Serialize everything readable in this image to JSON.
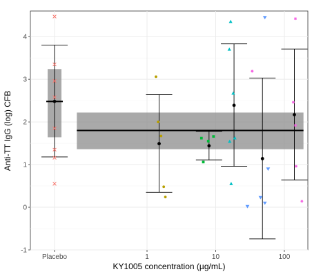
{
  "chart_data": {
    "type": "scatter",
    "title": "",
    "xlabel": "KY1005 concentration (µg/mL)",
    "ylabel": "Anti-TT IgG (log) CFB",
    "x_scale": "log10",
    "xlim": [
      0.02,
      220
    ],
    "ylim": [
      -1,
      4.6
    ],
    "x_ticks": [
      {
        "value": 0.045,
        "label": "Placebo"
      },
      {
        "value": 1,
        "label": "1"
      },
      {
        "value": 10,
        "label": "10"
      },
      {
        "value": 100,
        "label": "100"
      }
    ],
    "y_ticks": [
      -1,
      0,
      1,
      2,
      3,
      4
    ],
    "grid": true,
    "reference_band": {
      "x_from": 0.095,
      "x_to": 190,
      "center": 1.8,
      "lower": 1.36,
      "upper": 2.22
    },
    "placebo_box": {
      "x": 0.045,
      "median": 2.48,
      "q1": 1.64,
      "q3": 3.24,
      "whisker_low": 1.18,
      "whisker_high": 3.8
    },
    "summary_points": [
      {
        "x": 0.045,
        "mean": 2.48,
        "lower": 1.18,
        "upper": 3.8
      },
      {
        "x": 1.5,
        "mean": 1.49,
        "lower": 0.35,
        "upper": 2.64
      },
      {
        "x": 8.0,
        "mean": 1.44,
        "lower": 1.11,
        "upper": 1.78
      },
      {
        "x": 18.5,
        "mean": 2.39,
        "lower": 0.96,
        "upper": 3.83
      },
      {
        "x": 48.0,
        "mean": 1.14,
        "lower": -0.74,
        "upper": 3.03
      },
      {
        "x": 140.0,
        "mean": 2.17,
        "lower": 0.64,
        "upper": 3.71
      }
    ],
    "series": [
      {
        "shape": "cross",
        "color": "#f8766d",
        "points": [
          [
            0.045,
            4.47
          ],
          [
            0.045,
            3.35
          ],
          [
            0.045,
            2.96
          ],
          [
            0.045,
            2.58
          ],
          [
            0.045,
            1.85
          ],
          [
            0.045,
            1.35
          ],
          [
            0.045,
            1.16
          ],
          [
            0.045,
            0.55
          ]
        ]
      },
      {
        "shape": "circle",
        "color": "#b79f00",
        "points": [
          [
            1.35,
            3.06
          ],
          [
            1.45,
            2.0
          ],
          [
            1.6,
            1.67
          ],
          [
            1.75,
            0.48
          ],
          [
            1.85,
            0.24
          ]
        ]
      },
      {
        "shape": "square",
        "color": "#00ba38",
        "points": [
          [
            6.2,
            1.62
          ],
          [
            7.8,
            1.55
          ],
          [
            9.3,
            1.66
          ],
          [
            6.6,
            1.06
          ]
        ]
      },
      {
        "shape": "triangle-up",
        "color": "#00bfc4",
        "points": [
          [
            16.5,
            4.35
          ],
          [
            15.8,
            3.7
          ],
          [
            18.0,
            2.67
          ],
          [
            16.0,
            1.54
          ],
          [
            19.0,
            1.62
          ],
          [
            16.8,
            0.55
          ]
        ]
      },
      {
        "shape": "triangle-down",
        "color": "#619cff",
        "points": [
          [
            52.0,
            4.45
          ],
          [
            29.0,
            0.02
          ],
          [
            45.0,
            0.23
          ],
          [
            58.0,
            0.9
          ],
          [
            52.0,
            0.1
          ]
        ]
      },
      {
        "shape": "star",
        "color": "#f564e3",
        "points": [
          [
            145.0,
            4.42
          ],
          [
            34.0,
            3.19
          ],
          [
            135.0,
            2.46
          ],
          [
            145.0,
            1.92
          ],
          [
            148.0,
            0.96
          ],
          [
            180.0,
            0.14
          ]
        ]
      }
    ]
  }
}
